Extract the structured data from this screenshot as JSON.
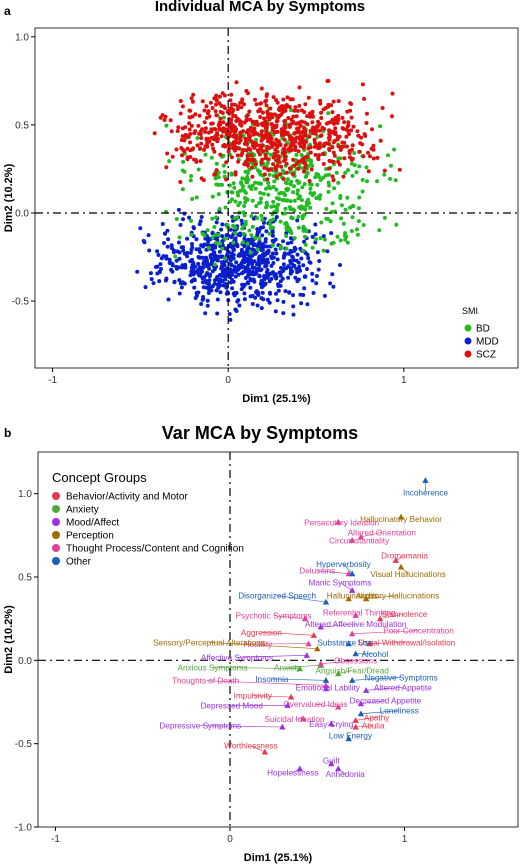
{
  "panel_a": {
    "label": "a",
    "title": "Individual MCA by Symptoms"
  },
  "panel_b": {
    "label": "b",
    "title": "Var MCA by Symptoms"
  },
  "colors": {
    "BD": "#22bb22",
    "MDD": "#0a1fcc",
    "SCZ": "#dd1010",
    "behavior": "#e8384f",
    "anxiety": "#52a83b",
    "mood": "#9b30e0",
    "perception": "#a06a00",
    "thought": "#e0409a",
    "other": "#1a5fb4"
  },
  "chart_data": [
    {
      "type": "scatter",
      "title": "Individual MCA by Symptoms",
      "xlabel": "Dim1 (25.1%)",
      "ylabel": "Dim2 (10.2%)",
      "xlim": [
        -1.1,
        1.65
      ],
      "ylim": [
        -0.88,
        1.05
      ],
      "x_ticks": [
        -1,
        0,
        1
      ],
      "y_ticks": [
        -0.5,
        0.0,
        0.5,
        1.0
      ],
      "grid": false,
      "legend": {
        "title": "SMI",
        "position": "right",
        "entries": [
          "BD",
          "MDD",
          "SCZ"
        ]
      },
      "series": [
        {
          "name": "SCZ",
          "cluster": {
            "x": [
              -0.95,
              1.3
            ],
            "y": [
              0.05,
              0.85
            ]
          },
          "approx_n": 750
        },
        {
          "name": "BD",
          "cluster": {
            "x": [
              -0.6,
              1.1
            ],
            "y": [
              -0.65,
              0.95
            ]
          },
          "approx_n": 500
        },
        {
          "name": "MDD",
          "cluster": {
            "x": [
              -0.9,
              0.9
            ],
            "y": [
              -0.72,
              0.05
            ]
          },
          "approx_n": 750
        }
      ]
    },
    {
      "type": "scatter",
      "title": "Var MCA by Symptoms",
      "xlabel": "Dim1 (25.1%)",
      "ylabel": "Dim2 (10.2%)",
      "xlim": [
        -1.1,
        1.65
      ],
      "ylim": [
        -1.0,
        1.25
      ],
      "x_ticks": [
        -1,
        0,
        1
      ],
      "y_ticks": [
        -1.0,
        -0.5,
        0.0,
        0.5,
        1.0
      ],
      "grid": false,
      "legend": {
        "title": "Concept Groups",
        "position": "top-left",
        "entries": [
          {
            "label": "Behavior/Activity and Motor",
            "group": "behavior"
          },
          {
            "label": "Anxiety",
            "group": "anxiety"
          },
          {
            "label": "Mood/Affect",
            "group": "mood"
          },
          {
            "label": "Perception",
            "group": "perception"
          },
          {
            "label": "Thought Process/Content and Cognition",
            "group": "thought"
          },
          {
            "label": "Other",
            "group": "other"
          }
        ]
      },
      "points": [
        {
          "label": "Incoherence",
          "group": "other",
          "x": 1.12,
          "y": 1.08,
          "lx": 1.12,
          "ly": 0.99
        },
        {
          "label": "Hallucinatory Behavior",
          "group": "perception",
          "x": 0.98,
          "y": 0.86,
          "lx": 0.98,
          "ly": 0.83
        },
        {
          "label": "Persecutory Ideation",
          "group": "thought",
          "x": 0.62,
          "y": 0.83,
          "lx": 0.64,
          "ly": 0.81
        },
        {
          "label": "Altered Orientation",
          "group": "thought",
          "x": 0.75,
          "y": 0.74,
          "lx": 0.87,
          "ly": 0.75
        },
        {
          "label": "Circumstantiality",
          "group": "thought",
          "x": 0.7,
          "y": 0.72,
          "lx": 0.74,
          "ly": 0.7
        },
        {
          "label": "Dromomania",
          "group": "behavior",
          "x": 0.95,
          "y": 0.6,
          "lx": 1.0,
          "ly": 0.61
        },
        {
          "label": "Visual Hallucinations",
          "group": "perception",
          "x": 0.98,
          "y": 0.56,
          "lx": 1.02,
          "ly": 0.5
        },
        {
          "label": "Delusions",
          "group": "thought",
          "x": 0.68,
          "y": 0.52,
          "lx": 0.5,
          "ly": 0.52
        },
        {
          "label": "Hyperverbosity",
          "group": "other",
          "x": 0.7,
          "y": 0.52,
          "lx": 0.65,
          "ly": 0.56
        },
        {
          "label": "Manic Symptoms",
          "group": "mood",
          "x": 0.7,
          "y": 0.42,
          "lx": 0.63,
          "ly": 0.45
        },
        {
          "label": "Disorganized Speech",
          "group": "other",
          "x": 0.55,
          "y": 0.35,
          "lx": 0.27,
          "ly": 0.37
        },
        {
          "label": "Hallucinations",
          "group": "perception",
          "x": 0.68,
          "y": 0.37,
          "lx": 0.7,
          "ly": 0.37
        },
        {
          "label": "Auditory Hallucinations",
          "group": "perception",
          "x": 0.78,
          "y": 0.37,
          "lx": 0.96,
          "ly": 0.37
        },
        {
          "label": "Referential Thinking",
          "group": "thought",
          "x": 0.72,
          "y": 0.27,
          "lx": 0.74,
          "ly": 0.27
        },
        {
          "label": "Somnolence",
          "group": "behavior",
          "x": 0.86,
          "y": 0.25,
          "lx": 1.0,
          "ly": 0.26
        },
        {
          "label": "Psychotic Symptoms",
          "group": "thought",
          "x": 0.43,
          "y": 0.25,
          "lx": 0.25,
          "ly": 0.25
        },
        {
          "label": "Altered Affective Modulation",
          "group": "mood",
          "x": 0.52,
          "y": 0.2,
          "lx": 0.72,
          "ly": 0.2
        },
        {
          "label": "Poor Concentration",
          "group": "thought",
          "x": 0.7,
          "y": 0.16,
          "lx": 1.08,
          "ly": 0.16
        },
        {
          "label": "Aggression",
          "group": "behavior",
          "x": 0.48,
          "y": 0.15,
          "lx": 0.18,
          "ly": 0.15
        },
        {
          "label": "Social Withdrawal/Isolation",
          "group": "behavior",
          "x": 0.8,
          "y": 0.1,
          "lx": 1.01,
          "ly": 0.09
        },
        {
          "label": "Hostility",
          "group": "thought",
          "x": 0.45,
          "y": 0.1,
          "lx": 0.16,
          "ly": 0.08
        },
        {
          "label": "Sensory/Perceptual Alterations",
          "group": "perception",
          "x": 0.5,
          "y": 0.07,
          "lx": -0.12,
          "ly": 0.09
        },
        {
          "label": "Substance Use",
          "group": "other",
          "x": 0.68,
          "y": 0.1,
          "lx": 0.66,
          "ly": 0.09
        },
        {
          "label": "Alcohol",
          "group": "other",
          "x": 0.72,
          "y": 0.04,
          "lx": 0.83,
          "ly": 0.02
        },
        {
          "label": "Affective Symptoms",
          "group": "mood",
          "x": 0.44,
          "y": 0.03,
          "lx": 0.04,
          "ly": 0.0
        },
        {
          "label": "Anxiety",
          "group": "anxiety",
          "x": 0.52,
          "y": -0.03,
          "lx": 0.33,
          "ly": -0.06
        },
        {
          "label": "Anxious Symptoms",
          "group": "anxiety",
          "x": 0.4,
          "y": -0.05,
          "lx": -0.1,
          "ly": -0.06
        },
        {
          "label": "Obsessions",
          "group": "thought",
          "x": 0.52,
          "y": -0.02,
          "lx": 0.72,
          "ly": -0.02
        },
        {
          "label": "Anguish/Fear/Dread",
          "group": "anxiety",
          "x": 0.62,
          "y": -0.08,
          "lx": 0.7,
          "ly": -0.08
        },
        {
          "label": "Negative Symptoms",
          "group": "other",
          "x": 0.7,
          "y": -0.12,
          "lx": 0.98,
          "ly": -0.12
        },
        {
          "label": "Insomnia",
          "group": "other",
          "x": 0.55,
          "y": -0.12,
          "lx": 0.24,
          "ly": -0.13
        },
        {
          "label": "Thoughts of Death",
          "group": "thought",
          "x": 0.55,
          "y": -0.15,
          "lx": -0.14,
          "ly": -0.14
        },
        {
          "label": "Emotional Lability",
          "group": "mood",
          "x": 0.55,
          "y": -0.17,
          "lx": 0.56,
          "ly": -0.18
        },
        {
          "label": "Altered Appetite",
          "group": "mood",
          "x": 0.78,
          "y": -0.18,
          "lx": 0.99,
          "ly": -0.18
        },
        {
          "label": "Impulsivity",
          "group": "behavior",
          "x": 0.35,
          "y": -0.22,
          "lx": 0.13,
          "ly": -0.23
        },
        {
          "label": "Overvalued Ideas",
          "group": "thought",
          "x": 0.62,
          "y": -0.28,
          "lx": 0.49,
          "ly": -0.28
        },
        {
          "label": "Decreased Appetite",
          "group": "mood",
          "x": 0.75,
          "y": -0.26,
          "lx": 0.89,
          "ly": -0.26
        },
        {
          "label": "Depressed Mood",
          "group": "mood",
          "x": 0.33,
          "y": -0.27,
          "lx": 0.01,
          "ly": -0.29
        },
        {
          "label": "Loneliness",
          "group": "other",
          "x": 0.75,
          "y": -0.32,
          "lx": 0.97,
          "ly": -0.32
        },
        {
          "label": "Suicidal Ideation",
          "group": "thought",
          "x": 0.42,
          "y": -0.35,
          "lx": 0.37,
          "ly": -0.37
        },
        {
          "label": "Apathy",
          "group": "behavior",
          "x": 0.72,
          "y": -0.36,
          "lx": 0.84,
          "ly": -0.36
        },
        {
          "label": "Easy Crying",
          "group": "mood",
          "x": 0.58,
          "y": -0.38,
          "lx": 0.58,
          "ly": -0.4
        },
        {
          "label": "Abulia",
          "group": "behavior",
          "x": 0.72,
          "y": -0.4,
          "lx": 0.82,
          "ly": -0.41
        },
        {
          "label": "Depressive Symptoms",
          "group": "mood",
          "x": 0.3,
          "y": -0.4,
          "lx": -0.17,
          "ly": -0.41
        },
        {
          "label": "Low Energy",
          "group": "other",
          "x": 0.68,
          "y": -0.47,
          "lx": 0.69,
          "ly": -0.47
        },
        {
          "label": "Worthlessness",
          "group": "behavior",
          "x": 0.2,
          "y": -0.55,
          "lx": 0.12,
          "ly": -0.53
        },
        {
          "label": "Guilt",
          "group": "mood",
          "x": 0.58,
          "y": -0.62,
          "lx": 0.58,
          "ly": -0.62
        },
        {
          "label": "Hopelessness",
          "group": "mood",
          "x": 0.4,
          "y": -0.65,
          "lx": 0.36,
          "ly": -0.69
        },
        {
          "label": "Anhedonia",
          "group": "mood",
          "x": 0.62,
          "y": -0.65,
          "lx": 0.66,
          "ly": -0.7
        }
      ]
    }
  ]
}
